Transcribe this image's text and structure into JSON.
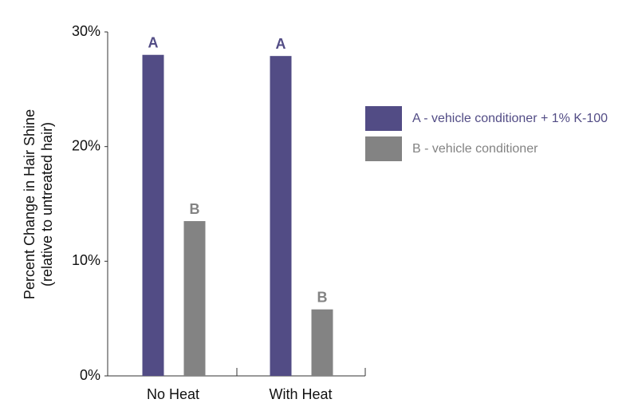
{
  "chart_data": {
    "type": "bar",
    "y_label": [
      "Percent Change in Hair Shine",
      "(relative to untreated hair)"
    ],
    "categories": [
      "No Heat",
      "With Heat"
    ],
    "series": [
      {
        "name": "A - vehicle conditioner + 1% K-100",
        "label": "A",
        "color": "#524c85",
        "values": [
          28,
          27.9
        ]
      },
      {
        "name": "B - vehicle conditioner",
        "label": "B",
        "color": "#838383",
        "values": [
          13.5,
          5.8
        ]
      }
    ],
    "ylim": [
      0,
      30
    ],
    "yticks": [
      {
        "value": 0,
        "label": "0%"
      },
      {
        "value": 10,
        "label": "10%"
      },
      {
        "value": 20,
        "label": "20%"
      },
      {
        "value": 30,
        "label": "30%"
      }
    ],
    "legend": "right"
  }
}
